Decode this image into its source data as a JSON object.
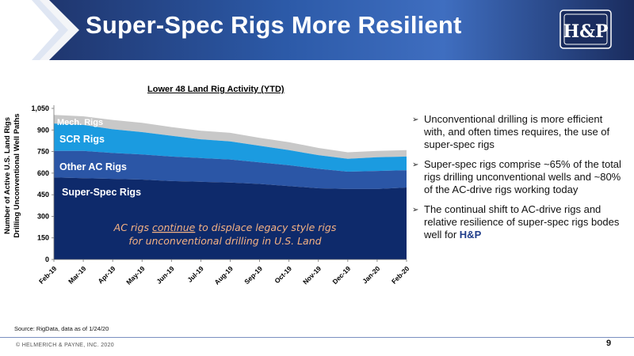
{
  "header": {
    "title": "Super-Spec Rigs More Resilient",
    "logo_text": "H&P"
  },
  "chart_data": {
    "type": "area",
    "stacked": true,
    "title": "Lower 48 Land Rig Activity (YTD)",
    "ylabel": [
      "Number of Active U.S. Land Rigs",
      "Drilling Unconventional Well Paths"
    ],
    "xlabel": "",
    "ylim": [
      0,
      1050
    ],
    "yticks": [
      0,
      150,
      300,
      450,
      600,
      750,
      900,
      1050
    ],
    "ytick_labels": [
      "0",
      "150",
      "300",
      "450",
      "600",
      "750",
      "900",
      "1,050"
    ],
    "x": [
      "Feb-19",
      "Mar-19",
      "Apr-19",
      "May-19",
      "Jun-19",
      "Jul-19",
      "Aug-19",
      "Sep-19",
      "Oct-19",
      "Nov-19",
      "Dec-19",
      "Jan-20",
      "Feb-20"
    ],
    "series": [
      {
        "name": "Super-Spec Rigs",
        "color": "#0e2a6b",
        "values": [
          570,
          565,
          560,
          555,
          545,
          540,
          535,
          525,
          510,
          495,
          490,
          490,
          500
        ]
      },
      {
        "name": "Other AC Rigs",
        "color": "#2b56a6",
        "values": [
          185,
          190,
          180,
          175,
          170,
          165,
          160,
          150,
          145,
          135,
          120,
          125,
          120
        ]
      },
      {
        "name": "SCR Rigs",
        "color": "#1b9be0",
        "values": [
          190,
          180,
          165,
          155,
          145,
          130,
          125,
          115,
          105,
          95,
          90,
          95,
          95
        ]
      },
      {
        "name": "Mech. Rigs",
        "color": "#c8c8c8",
        "values": [
          60,
          60,
          65,
          65,
          60,
          60,
          60,
          55,
          55,
          50,
          45,
          45,
          45
        ]
      }
    ],
    "grid": false,
    "annotation": {
      "line1_pre": "AC rigs ",
      "line1_underlined": "continue",
      "line1_post": " to displace legacy style rigs",
      "line2": "for unconventional drilling in U.S. Land",
      "color": "#f4b183"
    }
  },
  "bullets": [
    {
      "text": "Unconventional drilling is more efficient with, and often times requires, the use of super-spec rigs"
    },
    {
      "text": "Super-spec rigs comprise ~65% of the total rigs drilling unconventional wells and ~80% of the AC-drive rigs working today"
    },
    {
      "text": "The continual shift to AC-drive rigs and relative resilience of super-spec rigs bodes well for ",
      "highlight": "H&P"
    }
  ],
  "bullet_icon": "arrow-bullet-icon",
  "footer": {
    "source": "Source: RigData, data as of 1/24/20",
    "copyright": "© HELMERICH & PAYNE, INC. 2020",
    "page_number": "9"
  }
}
